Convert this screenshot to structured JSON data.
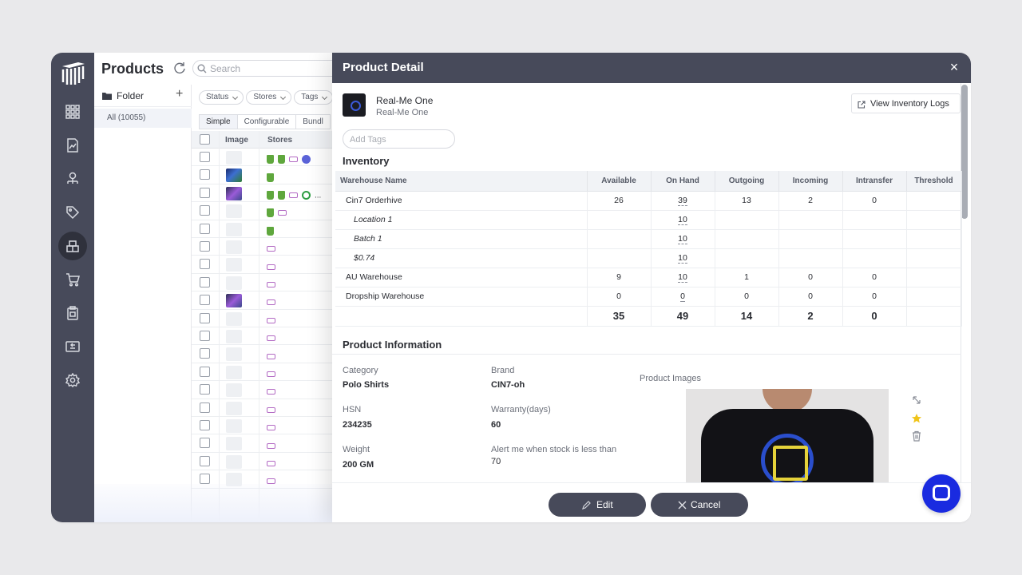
{
  "products": {
    "title": "Products",
    "search_placeholder": "Search",
    "folder_label": "Folder",
    "folder_all": "All (10055)",
    "filters": [
      "Status",
      "Stores",
      "Tags"
    ],
    "tabs": [
      "Simple",
      "Configurable",
      "Bundl"
    ],
    "columns": {
      "image": "Image",
      "stores": "Stores"
    },
    "rows": [
      {
        "thumb": "empty",
        "stores": [
          "shopify",
          "shopify",
          "woo",
          "logo"
        ]
      },
      {
        "thumb": "image",
        "stores": [
          "shopify"
        ]
      },
      {
        "thumb": "image2",
        "stores": [
          "shopify",
          "shopify",
          "woo",
          "round",
          "more"
        ]
      },
      {
        "thumb": "empty",
        "stores": [
          "shopify",
          "woo"
        ]
      },
      {
        "thumb": "empty",
        "stores": [
          "shopify"
        ]
      },
      {
        "thumb": "empty",
        "stores": [
          "woo"
        ]
      },
      {
        "thumb": "empty",
        "stores": [
          "woo"
        ]
      },
      {
        "thumb": "empty",
        "stores": [
          "woo"
        ]
      },
      {
        "thumb": "image2",
        "stores": [
          "woo"
        ]
      },
      {
        "thumb": "empty",
        "stores": [
          "woo"
        ]
      },
      {
        "thumb": "empty",
        "stores": [
          "woo"
        ]
      },
      {
        "thumb": "empty",
        "stores": [
          "woo"
        ]
      },
      {
        "thumb": "empty",
        "stores": [
          "woo"
        ]
      },
      {
        "thumb": "empty",
        "stores": [
          "woo"
        ]
      },
      {
        "thumb": "empty",
        "stores": [
          "woo"
        ]
      },
      {
        "thumb": "empty",
        "stores": [
          "woo"
        ]
      },
      {
        "thumb": "empty",
        "stores": [
          "woo"
        ]
      },
      {
        "thumb": "empty",
        "stores": [
          "woo"
        ]
      },
      {
        "thumb": "empty",
        "stores": [
          "woo"
        ]
      }
    ],
    "more_label": "..."
  },
  "nav": {
    "items": [
      "dashboard-icon",
      "reports-icon",
      "network-icon",
      "tag-icon",
      "inventory-icon",
      "cart-icon",
      "clipboard-icon",
      "returns-icon",
      "settings-icon"
    ],
    "active": "inventory-icon"
  },
  "detail": {
    "title": "Product Detail",
    "close": "×",
    "product_name": "Real-Me One",
    "product_sub": "Real-Me One",
    "view_logs": "View Inventory Logs",
    "tags_placeholder": "Add Tags",
    "inventory_title": "Inventory",
    "inventory_columns": [
      "Warehouse Name",
      "Available",
      "On Hand",
      "Outgoing",
      "Incoming",
      "Intransfer",
      "Threshold"
    ],
    "inventory_rows": [
      {
        "name": "Cin7 Orderhive",
        "sub": false,
        "available": "26",
        "on_hand": "39",
        "outgoing": "13",
        "incoming": "2",
        "intransfer": "0",
        "threshold": ""
      },
      {
        "name": "Location 1",
        "sub": true,
        "available": "",
        "on_hand": "10",
        "outgoing": "",
        "incoming": "",
        "intransfer": "",
        "threshold": ""
      },
      {
        "name": "Batch 1",
        "sub": true,
        "available": "",
        "on_hand": "10",
        "outgoing": "",
        "incoming": "",
        "intransfer": "",
        "threshold": ""
      },
      {
        "name": "$0.74",
        "sub": true,
        "available": "",
        "on_hand": "10",
        "outgoing": "",
        "incoming": "",
        "intransfer": "",
        "threshold": ""
      },
      {
        "name": "AU Warehouse",
        "sub": false,
        "available": "9",
        "on_hand": "10",
        "outgoing": "1",
        "incoming": "0",
        "intransfer": "0",
        "threshold": ""
      },
      {
        "name": "Dropship Warehouse",
        "sub": false,
        "available": "0",
        "on_hand": "0",
        "outgoing": "0",
        "incoming": "0",
        "intransfer": "0",
        "threshold": ""
      }
    ],
    "inventory_totals": {
      "available": "35",
      "on_hand": "49",
      "outgoing": "14",
      "incoming": "2",
      "intransfer": "0"
    },
    "info_title": "Product Information",
    "info": {
      "category_label": "Category",
      "category": "Polo Shirts",
      "brand_label": "Brand",
      "brand": "CIN7-oh",
      "hsn_label": "HSN",
      "hsn": "234235",
      "warranty_label": "Warranty(days)",
      "warranty": "60",
      "weight_label": "Weight",
      "weight": "200 GM",
      "alert_label": "Alert me when stock is less than",
      "alert": "70",
      "images_label": "Product Images"
    },
    "edit_label": "Edit",
    "cancel_label": "Cancel"
  }
}
